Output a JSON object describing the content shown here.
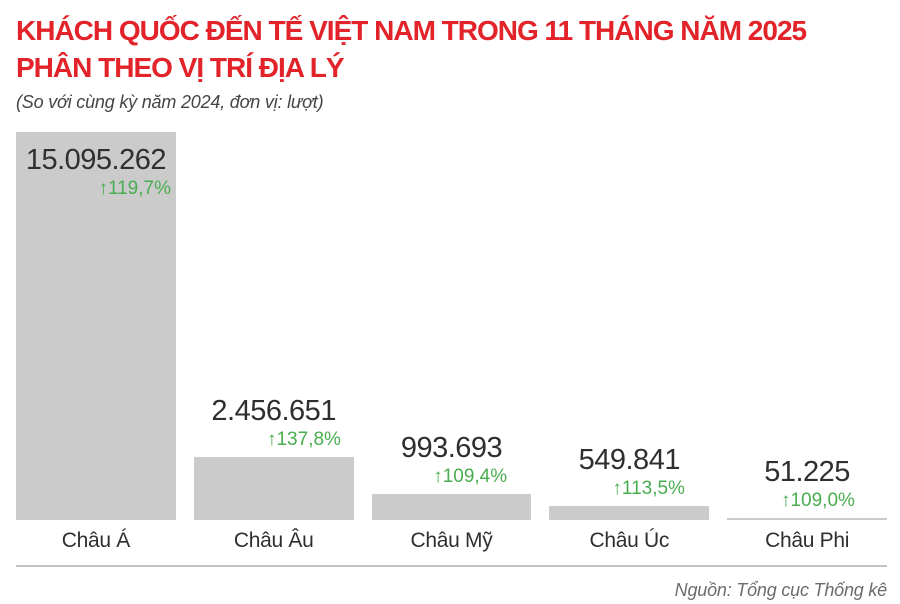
{
  "header": {
    "title_line1": "KHÁCH QUỐC ĐẾN TẾ VIỆT NAM TRONG 11 THÁNG NĂM 2025",
    "title_line2": "PHÂN THEO VỊ TRÍ ĐỊA LÝ",
    "subtitle": "(So với cùng kỳ năm 2024, đơn vị: lượt)"
  },
  "chart_data": {
    "type": "bar",
    "title": "KHÁCH QUỐC ĐẾN TẾ VIỆT NAM TRONG 11 THÁNG NĂM 2025 PHÂN THEO VỊ TRÍ ĐỊA LÝ",
    "subtitle": "(So với cùng kỳ năm 2024, đơn vị: lượt)",
    "categories": [
      "Châu Á",
      "Châu Âu",
      "Châu Mỹ",
      "Châu Úc",
      "Châu Phi"
    ],
    "values": [
      15095262,
      2456651,
      993693,
      549841,
      51225
    ],
    "value_labels": [
      "15.095.262",
      "2.456.651",
      "993.693",
      "549.841",
      "51.225"
    ],
    "growth_labels": [
      "↑119,7%",
      "↑137,8%",
      "↑109,4%",
      "↑113,5%",
      "↑109,0%"
    ],
    "ylim": [
      0,
      15095262
    ],
    "grid": false,
    "legend": false,
    "bar_color": "#cbcbcb",
    "growth_color": "#4aad50",
    "label_color": "#2f2f2f"
  },
  "footer": {
    "source": "Nguồn: Tổng cục Thống kê"
  },
  "colors": {
    "title": "#e2232a",
    "subtitle": "#454545",
    "divider": "#c3c3c3",
    "source": "#6c6c6c",
    "background": "#ffffff"
  }
}
